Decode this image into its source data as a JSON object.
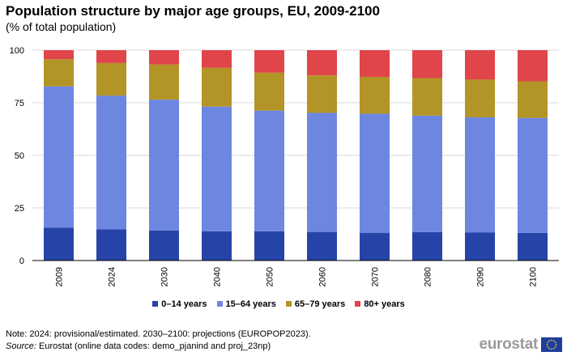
{
  "title": "Population structure by major age groups, EU, 2009-2100",
  "subtitle": "(% of total population)",
  "chart_data": {
    "type": "bar",
    "stacked": true,
    "categories": [
      "2009",
      "2024",
      "2030",
      "2040",
      "2050",
      "2060",
      "2070",
      "2080",
      "2090",
      "2100"
    ],
    "series": [
      {
        "name": "0–14 years",
        "color": "#2644a8",
        "values": [
          15.6,
          14.8,
          14.3,
          13.9,
          13.9,
          13.6,
          13.2,
          13.5,
          13.4,
          13.1
        ]
      },
      {
        "name": "15–64 years",
        "color": "#6d87e0",
        "values": [
          67.2,
          63.6,
          62.2,
          59.3,
          57.4,
          56.6,
          56.6,
          55.4,
          54.7,
          54.7
        ]
      },
      {
        "name": "65–79 years",
        "color": "#b39426",
        "values": [
          12.9,
          15.5,
          16.7,
          18.4,
          18.0,
          17.8,
          17.5,
          17.8,
          17.9,
          17.4
        ]
      },
      {
        "name": "80+ years",
        "color": "#e0454a",
        "values": [
          4.3,
          6.1,
          6.8,
          8.4,
          10.7,
          12.0,
          12.7,
          13.3,
          14.0,
          14.8
        ]
      }
    ],
    "ylim": [
      0,
      100
    ],
    "yticks": [
      0,
      25,
      50,
      75,
      100
    ],
    "grid": true,
    "legend": "bottom-center",
    "xlabel": "",
    "ylabel": ""
  },
  "footnote": "Note: 2024: provisional/estimated. 2030–2100: projections (EUROPOP2023).",
  "source_label": "Source:",
  "source_text": "Eurostat (online data codes: demo_pjanind and proj_23np)",
  "logo_text": "eurostat"
}
